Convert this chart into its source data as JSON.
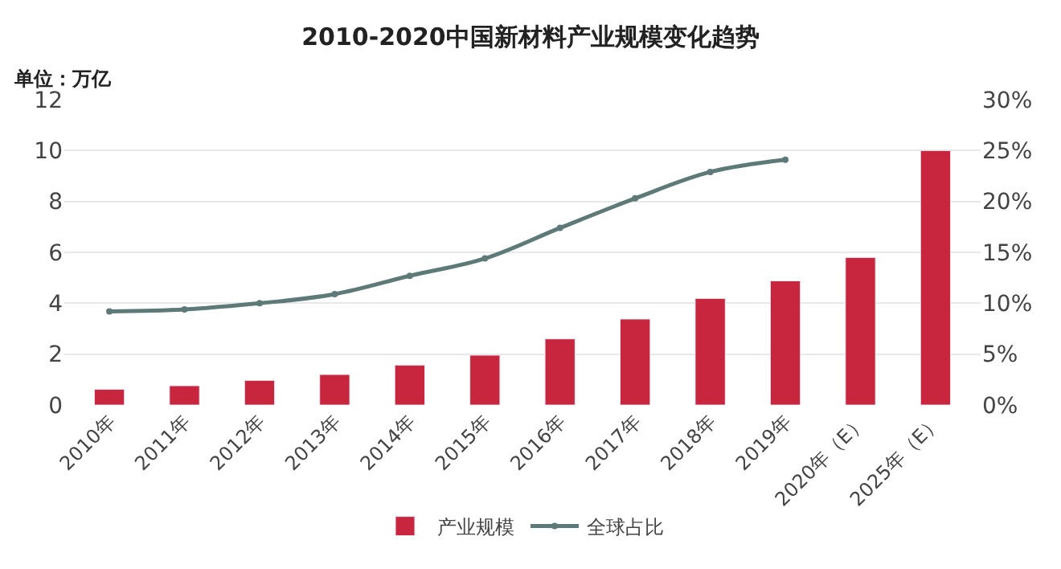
{
  "chart_data": {
    "type": "bar",
    "title": "2010-2020中国新材料产业规模变化趋势",
    "annotations": [
      "单位：万亿"
    ],
    "categories": [
      "2010年",
      "2011年",
      "2012年",
      "2013年",
      "2014年",
      "2015年",
      "2016年",
      "2017年",
      "2018年",
      "2019年",
      "2020年（E）",
      "2025年（E）"
    ],
    "series": [
      {
        "name": "产业规模",
        "color": "#c8253f",
        "values": [
          0.62,
          0.76,
          0.97,
          1.2,
          1.57,
          1.96,
          2.6,
          3.38,
          4.19,
          4.88,
          5.8,
          10.0
        ]
      },
      {
        "name": "全球占比",
        "type": "line",
        "axis": "y2",
        "color": "#5e7a78",
        "values": [
          9.2,
          9.4,
          10.0,
          10.9,
          12.7,
          14.4,
          17.4,
          20.3,
          22.9,
          24.1,
          null,
          null
        ]
      }
    ],
    "ylim": [
      0,
      12
    ],
    "yticks": [
      0,
      2,
      4,
      6,
      8,
      10,
      12
    ],
    "y2lim": [
      0,
      30
    ],
    "y2ticks": [
      {
        "value": 0,
        "label": "0%"
      },
      {
        "value": 5,
        "label": "5%"
      },
      {
        "value": 10,
        "label": "10%"
      },
      {
        "value": 15,
        "label": "15%"
      },
      {
        "value": 20,
        "label": "20%"
      },
      {
        "value": 25,
        "label": "25%"
      },
      {
        "value": 30,
        "label": "30%"
      }
    ],
    "grid": "y",
    "legend": "bottom",
    "marker": "circle",
    "line_style": "solid"
  }
}
